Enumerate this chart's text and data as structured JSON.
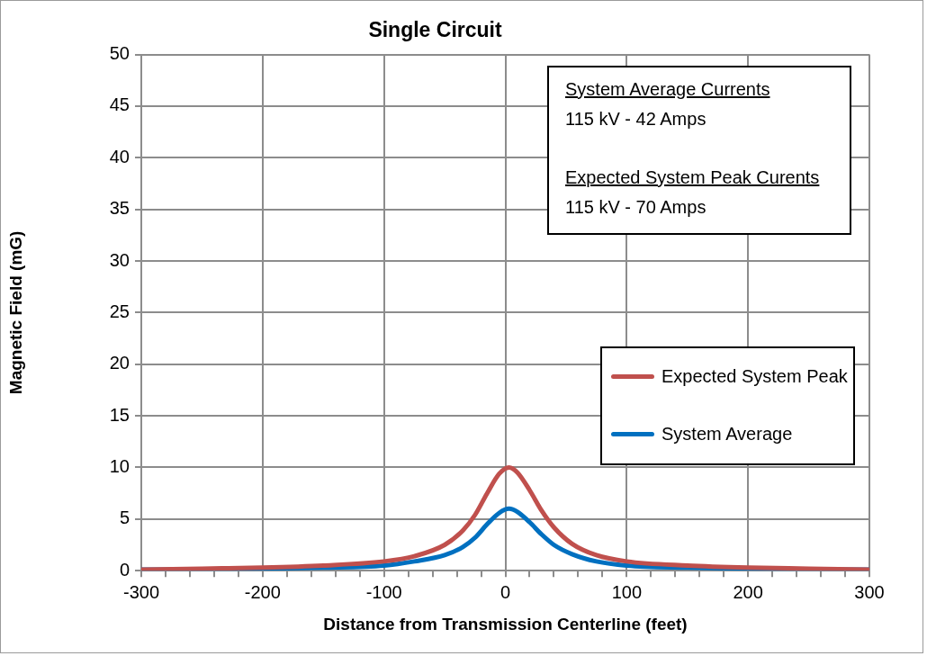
{
  "chart_data": {
    "type": "line",
    "title": "Single Circuit",
    "xlabel": "Distance from Transmission Centerline (feet)",
    "ylabel": "Magnetic Field (mG)",
    "x": [
      -300,
      -250,
      -200,
      -150,
      -100,
      -75,
      -50,
      -35,
      -25,
      -15,
      -5,
      3,
      10,
      20,
      30,
      40,
      55,
      75,
      100,
      150,
      200,
      250,
      300
    ],
    "series": [
      {
        "name": "Expected System Peak",
        "color": "#c0504d",
        "values": [
          0.1,
          0.2,
          0.3,
          0.5,
          0.9,
          1.4,
          2.5,
          3.9,
          5.4,
          7.5,
          9.4,
          10,
          9.5,
          7.8,
          5.8,
          4.2,
          2.6,
          1.5,
          0.9,
          0.5,
          0.3,
          0.2,
          0.1
        ]
      },
      {
        "name": "System Average",
        "color": "#0070c0",
        "values": [
          0.1,
          0.1,
          0.2,
          0.3,
          0.5,
          0.9,
          1.5,
          2.3,
          3.2,
          4.5,
          5.6,
          6,
          5.7,
          4.7,
          3.5,
          2.5,
          1.6,
          0.9,
          0.5,
          0.3,
          0.2,
          0.1,
          0.1
        ]
      }
    ],
    "xlim": [
      -300,
      300
    ],
    "xticks": [
      -300,
      {
        "value": -280,
        "label": null
      },
      {
        "value": -260,
        "label": null
      },
      {
        "value": -240,
        "label": null
      },
      {
        "value": -220,
        "label": null
      },
      -200,
      {
        "value": -180,
        "label": null
      },
      {
        "value": -160,
        "label": null
      },
      {
        "value": -140,
        "label": null
      },
      {
        "value": -120,
        "label": null
      },
      -100,
      {
        "value": -80,
        "label": null
      },
      {
        "value": -60,
        "label": null
      },
      {
        "value": -40,
        "label": null
      },
      {
        "value": -20,
        "label": null
      },
      0,
      {
        "value": 20,
        "label": null
      },
      {
        "value": 40,
        "label": null
      },
      {
        "value": 60,
        "label": null
      },
      {
        "value": 80,
        "label": null
      },
      100,
      {
        "value": 120,
        "label": null
      },
      {
        "value": 140,
        "label": null
      },
      {
        "value": 160,
        "label": null
      },
      {
        "value": 180,
        "label": null
      },
      200,
      {
        "value": 220,
        "label": null
      },
      {
        "value": 240,
        "label": null
      },
      {
        "value": 260,
        "label": null
      },
      {
        "value": 280,
        "label": null
      },
      300
    ],
    "ylim": [
      0,
      50
    ],
    "yticks": [
      0,
      5,
      10,
      15,
      20,
      25,
      30,
      35,
      40,
      45,
      50
    ],
    "grid": true,
    "legend": "right",
    "marker": "none",
    "line_style": "solid",
    "annotations": [
      "System Average Currents",
      "115 kV - 42 Amps",
      "Expected System Peak Curents",
      "115 kV - 70 Amps"
    ]
  }
}
